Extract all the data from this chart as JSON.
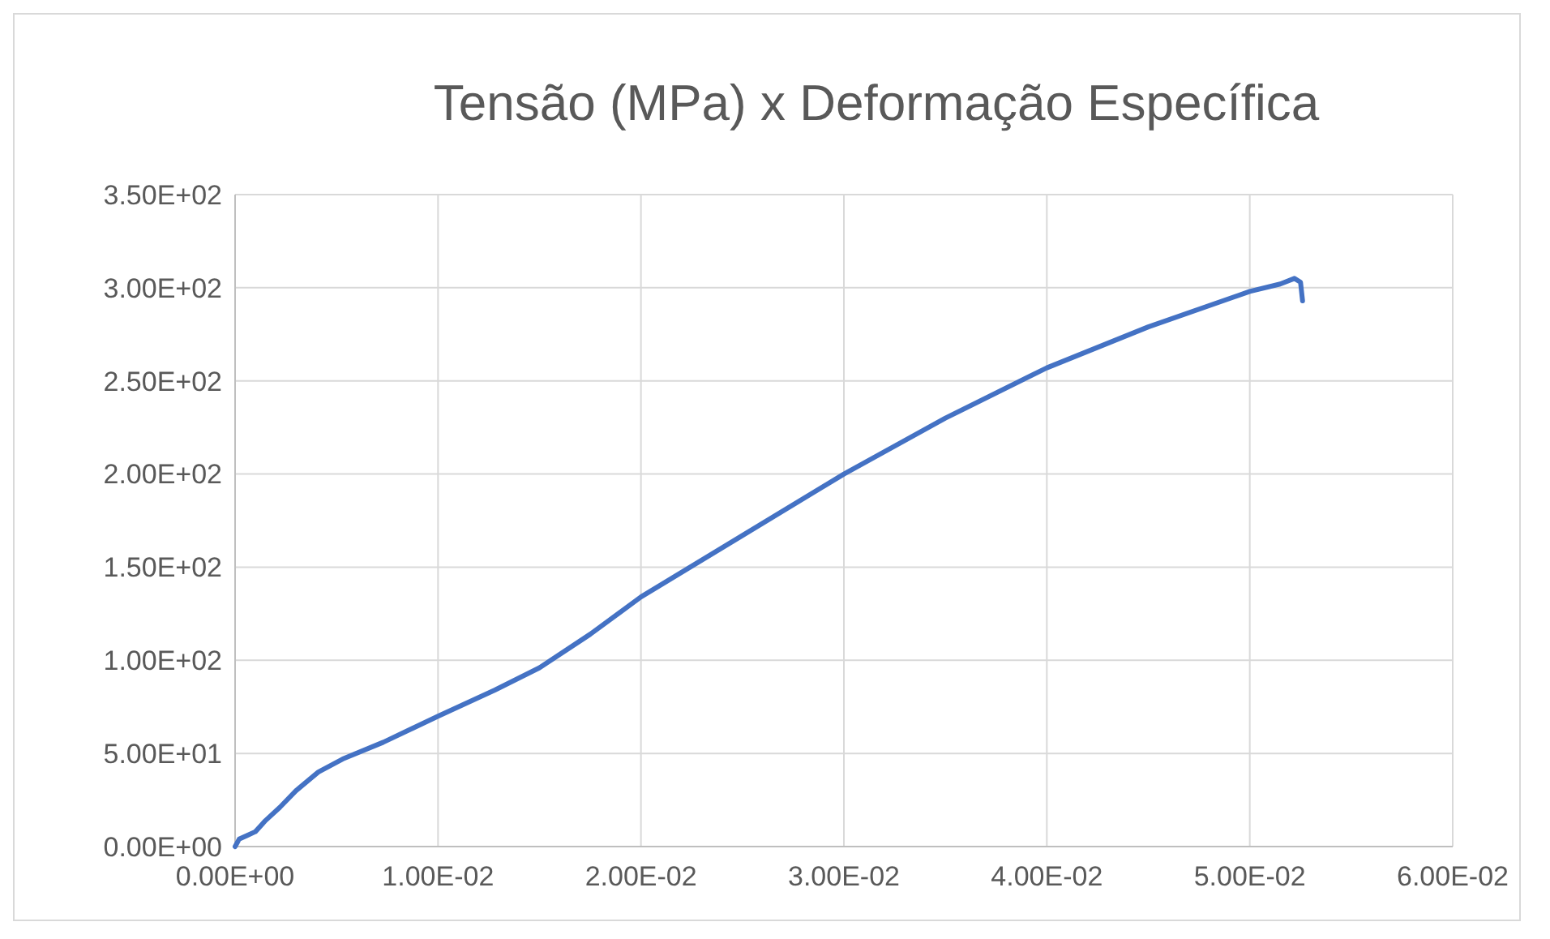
{
  "chart_data": {
    "type": "line",
    "title": "Tensão (MPa) x Deformação Específica",
    "series": [
      {
        "color": "#4472c4",
        "x": [
          0,
          0.0002,
          0.0006,
          0.001,
          0.0015,
          0.0022,
          0.003,
          0.0041,
          0.0053,
          0.0073,
          0.01,
          0.0128,
          0.015,
          0.0175,
          0.02,
          0.025,
          0.03,
          0.035,
          0.04,
          0.045,
          0.05,
          0.0515,
          0.0522,
          0.0525,
          0.0526
        ],
        "values": [
          0,
          4,
          6,
          8,
          14,
          21,
          30,
          40,
          47,
          56,
          70,
          84,
          96,
          114,
          134,
          167,
          200,
          230,
          257,
          279,
          298,
          302,
          305,
          303,
          293
        ]
      }
    ],
    "xlim": [
      0,
      0.06
    ],
    "ylim": [
      0,
      350
    ],
    "xticks": [
      {
        "value": 0,
        "label": "0.00E+00"
      },
      {
        "value": 0.01,
        "label": "1.00E-02"
      },
      {
        "value": 0.02,
        "label": "2.00E-02"
      },
      {
        "value": 0.03,
        "label": "3.00E-02"
      },
      {
        "value": 0.04,
        "label": "4.00E-02"
      },
      {
        "value": 0.05,
        "label": "5.00E-02"
      },
      {
        "value": 0.06,
        "label": "6.00E-02"
      }
    ],
    "yticks": [
      {
        "value": 0,
        "label": "0.00E+00"
      },
      {
        "value": 50,
        "label": "5.00E+01"
      },
      {
        "value": 100,
        "label": "1.00E+02"
      },
      {
        "value": 150,
        "label": "1.50E+02"
      },
      {
        "value": 200,
        "label": "2.00E+02"
      },
      {
        "value": 250,
        "label": "2.50E+02"
      },
      {
        "value": 300,
        "label": "3.00E+02"
      },
      {
        "value": 350,
        "label": "3.50E+02"
      }
    ],
    "grid": true,
    "marker": "none",
    "line_style": "solid"
  }
}
